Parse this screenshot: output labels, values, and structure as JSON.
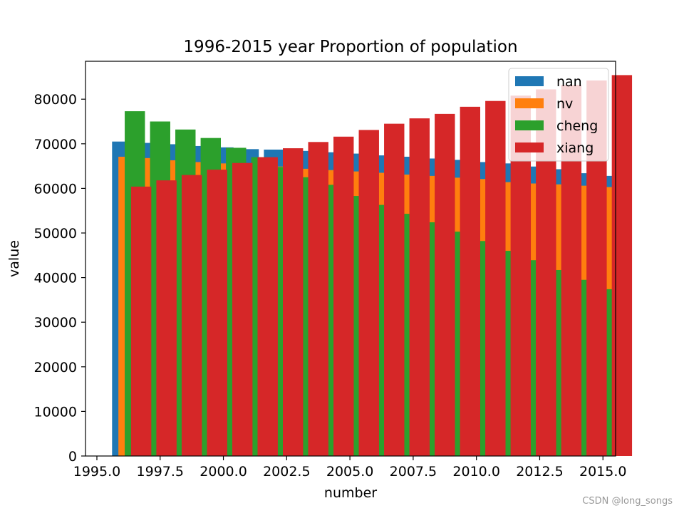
{
  "chart_data": {
    "type": "bar",
    "title": "1996-2015 year Proportion of population",
    "xlabel": "number",
    "ylabel": "value",
    "xlim": [
      1994.55,
      1995.5
    ],
    "ylim": [
      0,
      88500
    ],
    "x_ticks": [
      1995.0,
      1997.5,
      2000.0,
      2002.5,
      2005.0,
      2007.5,
      2010.0,
      2012.5,
      2015.0
    ],
    "x_tick_labels": [
      "1995.0",
      "1997.5",
      "2000.0",
      "2002.5",
      "2005.0",
      "2007.5",
      "2010.0",
      "2012.5",
      "2015.0"
    ],
    "y_ticks": [
      0,
      10000,
      20000,
      30000,
      40000,
      50000,
      60000,
      70000,
      80000
    ],
    "y_tick_labels": [
      "0",
      "10000",
      "20000",
      "30000",
      "40000",
      "50000",
      "60000",
      "70000",
      "80000"
    ],
    "grid": false,
    "legend_position": "top-right",
    "bar_width": 0.8,
    "x": [
      1996,
      1997,
      1998,
      1999,
      2000,
      2001,
      2002,
      2003,
      2004,
      2005,
      2006,
      2007,
      2008,
      2009,
      2010,
      2011,
      2012,
      2013,
      2014,
      2015
    ],
    "series": [
      {
        "name": "nan",
        "color": "#1f77b4",
        "x_offset": 0,
        "values": [
          70500,
          70200,
          69900,
          69500,
          69200,
          68800,
          68700,
          68400,
          68100,
          67800,
          67400,
          67100,
          66700,
          66400,
          65900,
          65600,
          64900,
          64300,
          63400,
          62800
        ]
      },
      {
        "name": "nv",
        "color": "#ff7f0e",
        "x_offset": 0.25,
        "values": [
          67100,
          66800,
          66300,
          65900,
          65600,
          65100,
          64900,
          64400,
          64100,
          63800,
          63500,
          63100,
          62800,
          62400,
          62100,
          61400,
          61100,
          60900,
          60600,
          60300
        ]
      },
      {
        "name": "cheng",
        "color": "#2ca02c",
        "x_offset": 0.5,
        "values": [
          77300,
          75000,
          73200,
          71300,
          69100,
          67000,
          64800,
          62500,
          60800,
          58300,
          56300,
          54300,
          52400,
          50300,
          48200,
          46000,
          43900,
          41700,
          39500,
          37400
        ]
      },
      {
        "name": "xiang",
        "color": "#d62728",
        "x_offset": 0.75,
        "values": [
          60400,
          61800,
          63000,
          64200,
          65700,
          67000,
          69000,
          70400,
          71600,
          73100,
          74500,
          75700,
          76700,
          78300,
          79600,
          80800,
          82200,
          83200,
          84200,
          85400
        ]
      }
    ]
  },
  "watermark": "CSDN @long_songs"
}
